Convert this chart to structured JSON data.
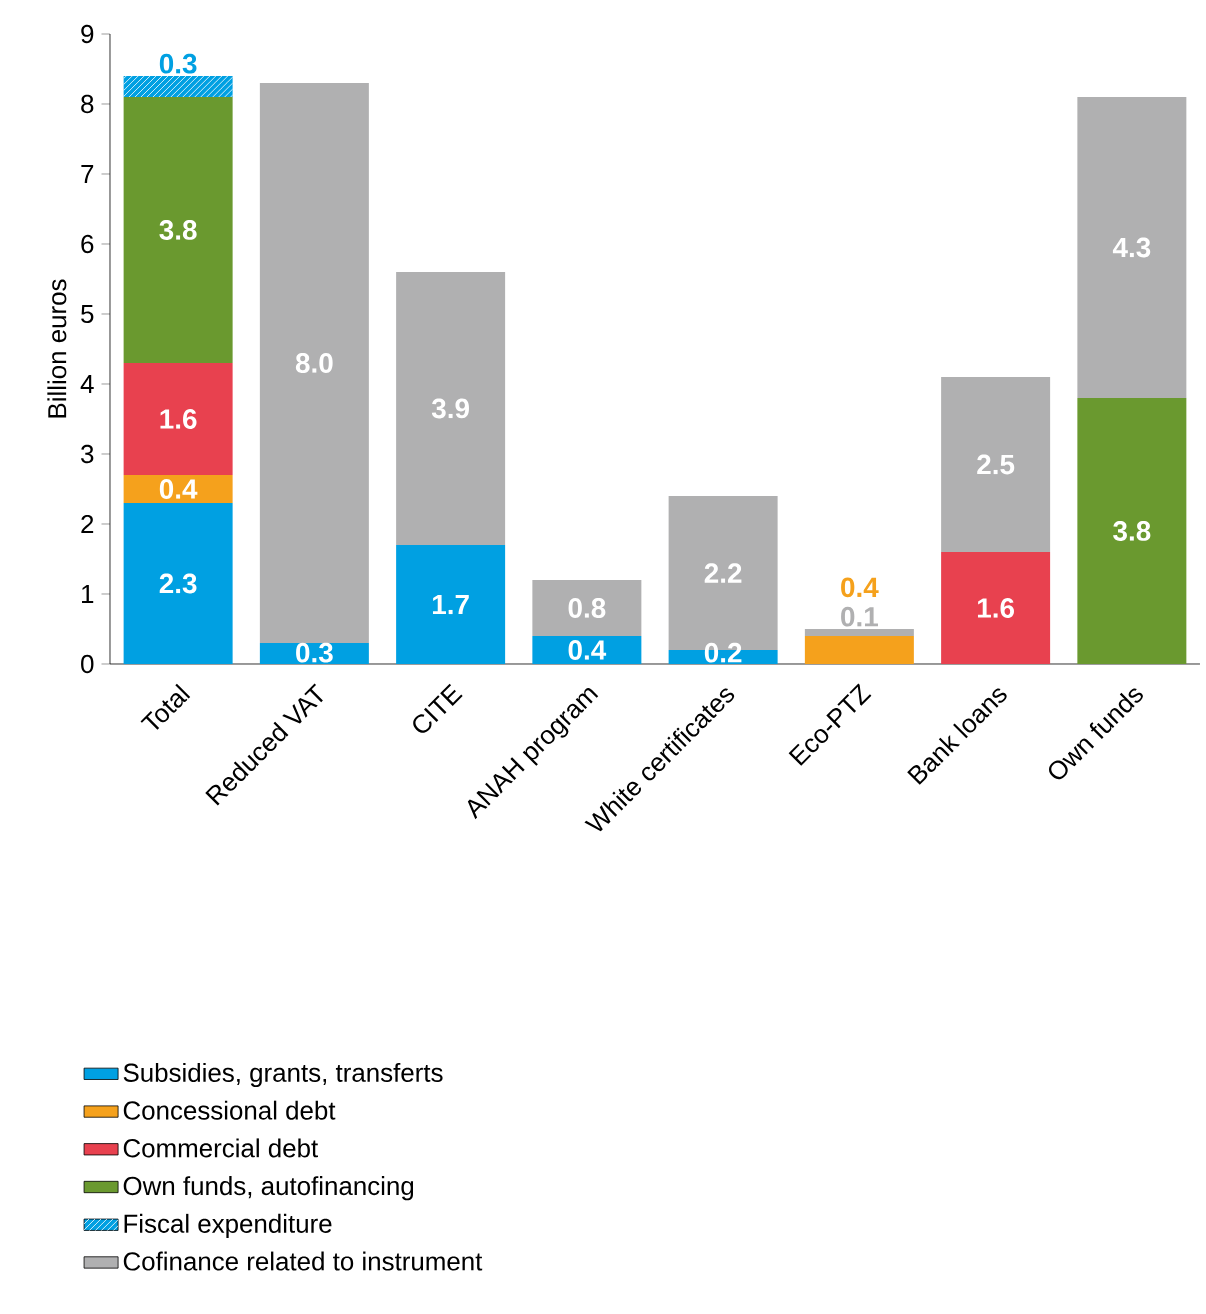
{
  "chart_data": {
    "type": "bar",
    "stacked": true,
    "ylabel": "Billion euros",
    "categories": [
      "Total",
      "Reduced VAT",
      "CITE",
      "ANAH program",
      "White certificates",
      "Eco-PTZ",
      "Bank loans",
      "Own funds"
    ],
    "series": [
      {
        "name": "Subsidies, grants, transferts",
        "color": "#00a0e2",
        "values": [
          2.3,
          0.3,
          1.7,
          0.4,
          0.2,
          null,
          null,
          null
        ],
        "value_labels": [
          "2.3",
          "0.3",
          "1.7",
          "0.4",
          "0.2",
          null,
          null,
          null
        ]
      },
      {
        "name": "Concessional debt",
        "color": "#f5a11c",
        "values": [
          0.4,
          null,
          null,
          null,
          null,
          0.4,
          null,
          null
        ],
        "value_labels": [
          "0.4",
          null,
          null,
          null,
          null,
          "0.4",
          null,
          null
        ]
      },
      {
        "name": "Commercial debt",
        "color": "#e8414f",
        "values": [
          1.6,
          null,
          null,
          null,
          null,
          null,
          1.6,
          null
        ],
        "value_labels": [
          "1.6",
          null,
          null,
          null,
          null,
          null,
          "1.6",
          null
        ]
      },
      {
        "name": "Own funds, autofinancing",
        "color": "#6a992f",
        "values": [
          3.8,
          null,
          null,
          null,
          null,
          null,
          null,
          3.8
        ],
        "value_labels": [
          "3.8",
          null,
          null,
          null,
          null,
          null,
          null,
          "3.8"
        ]
      },
      {
        "name": "Fiscal expenditure",
        "color": "#00a0e2",
        "values": [
          0.3,
          null,
          null,
          null,
          null,
          null,
          null,
          null
        ],
        "value_labels": [
          "0.3",
          null,
          null,
          null,
          null,
          null,
          null,
          null
        ]
      },
      {
        "name": "Cofinance related to instrument",
        "color": "#b0b0b1",
        "values": [
          null,
          8.0,
          3.9,
          0.8,
          2.2,
          0.1,
          2.5,
          4.3
        ],
        "value_labels": [
          null,
          "8.0",
          "3.9",
          "0.8",
          "2.2",
          "0.1",
          "2.5",
          "4.3"
        ]
      }
    ],
    "ylim": [
      0,
      9
    ],
    "yticks": [
      0,
      1,
      2,
      3,
      4,
      5,
      6,
      7,
      8,
      9
    ],
    "legend": "bottom"
  }
}
